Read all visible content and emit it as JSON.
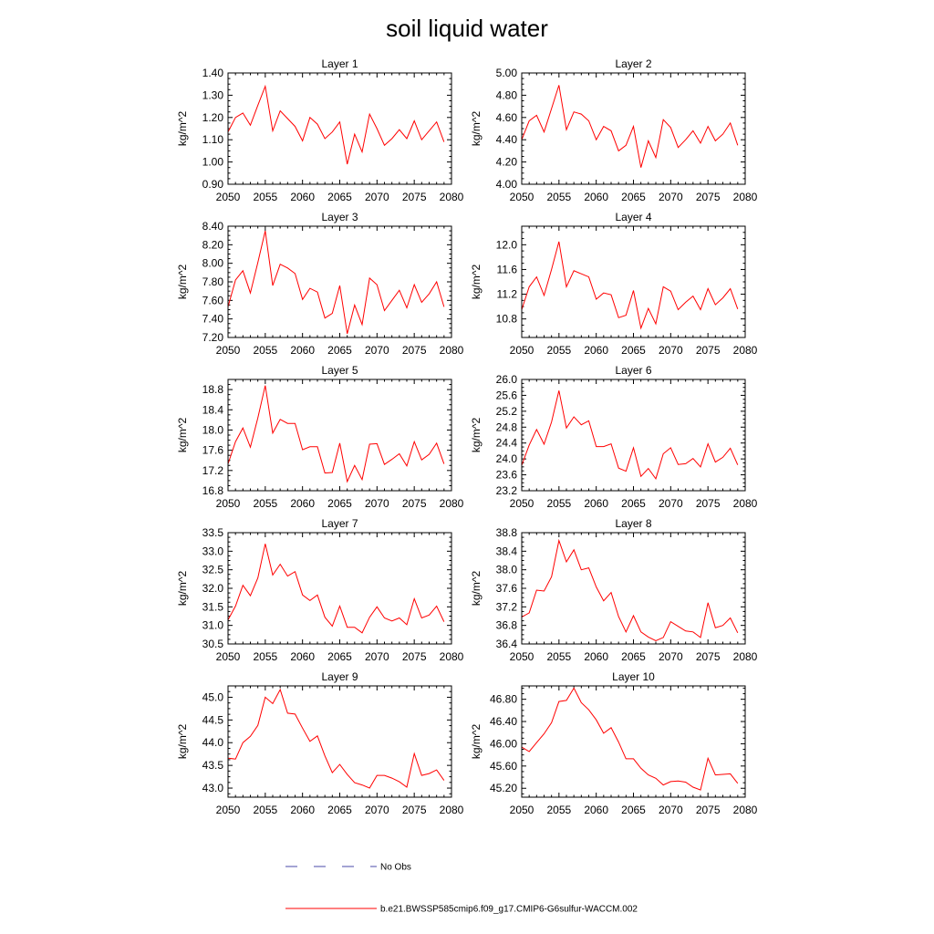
{
  "title": "soil liquid water",
  "colors": {
    "model_line": "#ff0000",
    "obs_line": "#4a4aa8",
    "axis": "#000000"
  },
  "legend": {
    "position": "bottom",
    "entries": [
      {
        "label": "No Obs",
        "style": "dashed",
        "color": "#4a4aa8"
      },
      {
        "label": "b.e21.BWSSP585cmip6.f09_g17.CMIP6-G6sulfur-WACCM.002",
        "style": "solid",
        "color": "#ff0000"
      }
    ]
  },
  "chart_data": [
    {
      "type": "line",
      "title": "Layer 1",
      "ylabel": "kg/m^2",
      "xlim": [
        2050,
        2080
      ],
      "ylim": [
        0.9,
        1.4
      ],
      "xticks": [
        "2050",
        "2055",
        "2060",
        "2065",
        "2070",
        "2075",
        "2080"
      ],
      "yticks": [
        "0.90",
        "1.00",
        "1.10",
        "1.20",
        "1.30",
        "1.40"
      ],
      "x": [
        2050,
        2051,
        2052,
        2053,
        2054,
        2055,
        2056,
        2057,
        2058,
        2059,
        2060,
        2061,
        2062,
        2063,
        2064,
        2065,
        2066,
        2067,
        2068,
        2069,
        2070,
        2071,
        2072,
        2073,
        2074,
        2075,
        2076,
        2077,
        2078,
        2079
      ],
      "y": [
        1.135,
        1.2,
        1.22,
        1.165,
        1.255,
        1.34,
        1.14,
        1.23,
        1.195,
        1.16,
        1.095,
        1.2,
        1.17,
        1.105,
        1.135,
        1.18,
        0.99,
        1.125,
        1.045,
        1.215,
        1.15,
        1.075,
        1.105,
        1.145,
        1.105,
        1.185,
        1.1,
        1.14,
        1.18,
        1.09
      ]
    },
    {
      "type": "line",
      "title": "Layer 2",
      "ylabel": "kg/m^2",
      "xlim": [
        2050,
        2080
      ],
      "ylim": [
        4.0,
        5.0
      ],
      "xticks": [
        "2050",
        "2055",
        "2060",
        "2065",
        "2070",
        "2075",
        "2080"
      ],
      "yticks": [
        "4.00",
        "4.20",
        "4.40",
        "4.60",
        "4.80",
        "5.00"
      ],
      "x": [
        2050,
        2051,
        2052,
        2053,
        2054,
        2055,
        2056,
        2057,
        2058,
        2059,
        2060,
        2061,
        2062,
        2063,
        2064,
        2065,
        2066,
        2067,
        2068,
        2069,
        2070,
        2071,
        2072,
        2073,
        2074,
        2075,
        2076,
        2077,
        2078,
        2079
      ],
      "y": [
        4.4,
        4.57,
        4.62,
        4.47,
        4.68,
        4.89,
        4.49,
        4.65,
        4.63,
        4.57,
        4.4,
        4.52,
        4.48,
        4.3,
        4.35,
        4.52,
        4.15,
        4.39,
        4.24,
        4.58,
        4.51,
        4.33,
        4.4,
        4.48,
        4.37,
        4.52,
        4.39,
        4.45,
        4.55,
        4.35
      ]
    },
    {
      "type": "line",
      "title": "Layer 3",
      "ylabel": "kg/m^2",
      "xlim": [
        2050,
        2080
      ],
      "ylim": [
        7.2,
        8.4
      ],
      "xticks": [
        "2050",
        "2055",
        "2060",
        "2065",
        "2070",
        "2075",
        "2080"
      ],
      "yticks": [
        "7.20",
        "7.40",
        "7.60",
        "7.80",
        "8.00",
        "8.20",
        "8.40"
      ],
      "x": [
        2050,
        2051,
        2052,
        2053,
        2054,
        2055,
        2056,
        2057,
        2058,
        2059,
        2060,
        2061,
        2062,
        2063,
        2064,
        2065,
        2066,
        2067,
        2068,
        2069,
        2070,
        2071,
        2072,
        2073,
        2074,
        2075,
        2076,
        2077,
        2078,
        2079
      ],
      "y": [
        7.53,
        7.82,
        7.92,
        7.68,
        8.01,
        8.35,
        7.76,
        7.99,
        7.95,
        7.89,
        7.61,
        7.73,
        7.69,
        7.41,
        7.46,
        7.76,
        7.24,
        7.55,
        7.34,
        7.84,
        7.77,
        7.49,
        7.6,
        7.71,
        7.52,
        7.77,
        7.58,
        7.67,
        7.8,
        7.53
      ]
    },
    {
      "type": "line",
      "title": "Layer 4",
      "ylabel": "kg/m^2",
      "xlim": [
        2050,
        2080
      ],
      "ylim": [
        10.5,
        12.3
      ],
      "xticks": [
        "2050",
        "2055",
        "2060",
        "2065",
        "2070",
        "2075",
        "2080"
      ],
      "yticks": [
        "10.8",
        "11.2",
        "11.6",
        "12.0"
      ],
      "x": [
        2050,
        2051,
        2052,
        2053,
        2054,
        2055,
        2056,
        2057,
        2058,
        2059,
        2060,
        2061,
        2062,
        2063,
        2064,
        2065,
        2066,
        2067,
        2068,
        2069,
        2070,
        2071,
        2072,
        2073,
        2074,
        2075,
        2076,
        2077,
        2078,
        2079
      ],
      "y": [
        10.95,
        11.32,
        11.48,
        11.18,
        11.6,
        12.05,
        11.32,
        11.58,
        11.53,
        11.48,
        11.12,
        11.22,
        11.19,
        10.82,
        10.86,
        11.26,
        10.65,
        10.97,
        10.72,
        11.32,
        11.25,
        10.95,
        11.07,
        11.17,
        10.95,
        11.29,
        11.03,
        11.14,
        11.29,
        10.96
      ]
    },
    {
      "type": "line",
      "title": "Layer 5",
      "ylabel": "kg/m^2",
      "xlim": [
        2050,
        2080
      ],
      "ylim": [
        16.8,
        19.0
      ],
      "xticks": [
        "2050",
        "2055",
        "2060",
        "2065",
        "2070",
        "2075",
        "2080"
      ],
      "yticks": [
        "16.8",
        "17.2",
        "17.6",
        "18.0",
        "18.4",
        "18.8"
      ],
      "x": [
        2050,
        2051,
        2052,
        2053,
        2054,
        2055,
        2056,
        2057,
        2058,
        2059,
        2060,
        2061,
        2062,
        2063,
        2064,
        2065,
        2066,
        2067,
        2068,
        2069,
        2070,
        2071,
        2072,
        2073,
        2074,
        2075,
        2076,
        2077,
        2078,
        2079
      ],
      "y": [
        17.33,
        17.77,
        18.04,
        17.66,
        18.24,
        18.88,
        17.94,
        18.21,
        18.13,
        18.13,
        17.61,
        17.67,
        17.67,
        17.15,
        17.16,
        17.74,
        16.98,
        17.3,
        17.02,
        17.72,
        17.73,
        17.32,
        17.42,
        17.53,
        17.29,
        17.77,
        17.41,
        17.52,
        17.74,
        17.33
      ]
    },
    {
      "type": "line",
      "title": "Layer 6",
      "ylabel": "kg/m^2",
      "xlim": [
        2050,
        2080
      ],
      "ylim": [
        23.2,
        26.0
      ],
      "xticks": [
        "2050",
        "2055",
        "2060",
        "2065",
        "2070",
        "2075",
        "2080"
      ],
      "yticks": [
        "23.2",
        "23.6",
        "24.0",
        "24.4",
        "24.8",
        "25.2",
        "25.6",
        "26.0"
      ],
      "x": [
        2050,
        2051,
        2052,
        2053,
        2054,
        2055,
        2056,
        2057,
        2058,
        2059,
        2060,
        2061,
        2062,
        2063,
        2064,
        2065,
        2066,
        2067,
        2068,
        2069,
        2070,
        2071,
        2072,
        2073,
        2074,
        2075,
        2076,
        2077,
        2078,
        2079
      ],
      "y": [
        23.84,
        24.35,
        24.74,
        24.37,
        24.93,
        25.72,
        24.78,
        25.06,
        24.86,
        24.96,
        24.31,
        24.31,
        24.38,
        23.77,
        23.69,
        24.28,
        23.56,
        23.76,
        23.5,
        24.13,
        24.28,
        23.86,
        23.88,
        24.01,
        23.8,
        24.38,
        23.92,
        24.04,
        24.27,
        23.85
      ]
    },
    {
      "type": "line",
      "title": "Layer 7",
      "ylabel": "kg/m^2",
      "xlim": [
        2050,
        2080
      ],
      "ylim": [
        30.5,
        33.5
      ],
      "xticks": [
        "2050",
        "2055",
        "2060",
        "2065",
        "2070",
        "2075",
        "2080"
      ],
      "yticks": [
        "30.5",
        "31.0",
        "31.5",
        "32.0",
        "32.5",
        "33.0",
        "33.5"
      ],
      "x": [
        2050,
        2051,
        2052,
        2053,
        2054,
        2055,
        2056,
        2057,
        2058,
        2059,
        2060,
        2061,
        2062,
        2063,
        2064,
        2065,
        2066,
        2067,
        2068,
        2069,
        2070,
        2071,
        2072,
        2073,
        2074,
        2075,
        2076,
        2077,
        2078,
        2079
      ],
      "y": [
        31.15,
        31.52,
        32.08,
        31.8,
        32.28,
        33.2,
        32.36,
        32.65,
        32.33,
        32.45,
        31.82,
        31.67,
        31.82,
        31.22,
        30.98,
        31.52,
        30.95,
        30.95,
        30.8,
        31.22,
        31.5,
        31.2,
        31.12,
        31.2,
        31.02,
        31.72,
        31.2,
        31.28,
        31.52,
        31.1
      ]
    },
    {
      "type": "line",
      "title": "Layer 8",
      "ylabel": "kg/m^2",
      "xlim": [
        2050,
        2080
      ],
      "ylim": [
        36.4,
        38.8
      ],
      "xticks": [
        "2050",
        "2055",
        "2060",
        "2065",
        "2070",
        "2075",
        "2080"
      ],
      "yticks": [
        "36.4",
        "36.8",
        "37.2",
        "37.6",
        "38.0",
        "38.4",
        "38.8"
      ],
      "x": [
        2050,
        2051,
        2052,
        2053,
        2054,
        2055,
        2056,
        2057,
        2058,
        2059,
        2060,
        2061,
        2062,
        2063,
        2064,
        2065,
        2066,
        2067,
        2068,
        2069,
        2070,
        2071,
        2072,
        2073,
        2074,
        2075,
        2076,
        2077,
        2078,
        2079
      ],
      "y": [
        36.98,
        37.07,
        37.56,
        37.54,
        37.85,
        38.63,
        38.17,
        38.43,
        38.0,
        38.04,
        37.63,
        37.33,
        37.51,
        36.99,
        36.66,
        37.01,
        36.66,
        36.55,
        36.47,
        36.54,
        36.88,
        36.78,
        36.68,
        36.66,
        36.54,
        37.29,
        36.75,
        36.8,
        36.96,
        36.64
      ]
    },
    {
      "type": "line",
      "title": "Layer 9",
      "ylabel": "kg/m^2",
      "xlim": [
        2050,
        2080
      ],
      "ylim": [
        42.8,
        45.25
      ],
      "xticks": [
        "2050",
        "2055",
        "2060",
        "2065",
        "2070",
        "2075",
        "2080"
      ],
      "yticks": [
        "43.0",
        "43.5",
        "44.0",
        "44.5",
        "45.0"
      ],
      "x": [
        2050,
        2051,
        2052,
        2053,
        2054,
        2055,
        2056,
        2057,
        2058,
        2059,
        2060,
        2061,
        2062,
        2063,
        2064,
        2065,
        2066,
        2067,
        2068,
        2069,
        2070,
        2071,
        2072,
        2073,
        2074,
        2075,
        2076,
        2077,
        2078,
        2079
      ],
      "y": [
        43.66,
        43.64,
        44.0,
        44.14,
        44.38,
        45.0,
        44.86,
        45.17,
        44.65,
        44.63,
        44.32,
        44.03,
        44.15,
        43.71,
        43.34,
        43.52,
        43.3,
        43.12,
        43.07,
        43.0,
        43.28,
        43.28,
        43.22,
        43.14,
        43.02,
        43.76,
        43.28,
        43.32,
        43.4,
        43.17
      ]
    },
    {
      "type": "line",
      "title": "Layer 10",
      "ylabel": "kg/m^2",
      "xlim": [
        2050,
        2080
      ],
      "ylim": [
        45.04,
        47.04
      ],
      "xticks": [
        "2050",
        "2055",
        "2060",
        "2065",
        "2070",
        "2075",
        "2080"
      ],
      "yticks": [
        "45.20",
        "45.60",
        "46.00",
        "46.40",
        "46.80"
      ],
      "x": [
        2050,
        2051,
        2052,
        2053,
        2054,
        2055,
        2056,
        2057,
        2058,
        2059,
        2060,
        2061,
        2062,
        2063,
        2064,
        2065,
        2066,
        2067,
        2068,
        2069,
        2070,
        2071,
        2072,
        2073,
        2074,
        2075,
        2076,
        2077,
        2078,
        2079
      ],
      "y": [
        45.94,
        45.86,
        46.02,
        46.18,
        46.38,
        46.76,
        46.78,
        47.0,
        46.74,
        46.61,
        46.43,
        46.19,
        46.29,
        46.03,
        45.73,
        45.73,
        45.56,
        45.44,
        45.38,
        45.26,
        45.32,
        45.33,
        45.31,
        45.22,
        45.17,
        45.74,
        45.44,
        45.45,
        45.46,
        45.29
      ]
    }
  ]
}
